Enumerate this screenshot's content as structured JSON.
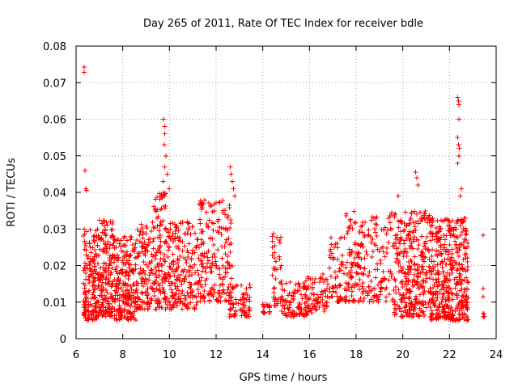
{
  "chart_data": {
    "type": "scatter",
    "title": "Day 265 of 2011, Rate Of TEC Index for receiver bdle",
    "xlabel": "GPS time / hours",
    "ylabel": "ROTI / TECUs",
    "xlim": [
      6,
      24
    ],
    "ylim": [
      0,
      0.08
    ],
    "xticks": [
      "6",
      "8",
      "10",
      "12",
      "14",
      "16",
      "18",
      "20",
      "22",
      "24"
    ],
    "yticks": [
      "0",
      "0.01",
      "0.02",
      "0.03",
      "0.04",
      "0.05",
      "0.06",
      "0.07",
      "0.08"
    ],
    "grid": true,
    "marker": "+",
    "color": "#ff0000",
    "clusters": [
      {
        "x_start": 6.3,
        "x_end": 7.0,
        "y_min": 0.005,
        "y_max": 0.03,
        "count": 180
      },
      {
        "x_start": 7.0,
        "x_end": 7.6,
        "y_min": 0.006,
        "y_max": 0.033,
        "count": 160
      },
      {
        "x_start": 7.6,
        "x_end": 8.6,
        "y_min": 0.005,
        "y_max": 0.028,
        "count": 220
      },
      {
        "x_start": 8.6,
        "x_end": 9.3,
        "y_min": 0.008,
        "y_max": 0.032,
        "count": 120
      },
      {
        "x_start": 9.3,
        "x_end": 10.0,
        "y_min": 0.008,
        "y_max": 0.041,
        "count": 140
      },
      {
        "x_start": 10.0,
        "x_end": 11.2,
        "y_min": 0.008,
        "y_max": 0.032,
        "count": 180
      },
      {
        "x_start": 11.2,
        "x_end": 12.7,
        "y_min": 0.01,
        "y_max": 0.038,
        "count": 200
      },
      {
        "x_start": 12.5,
        "x_end": 13.5,
        "y_min": 0.006,
        "y_max": 0.015,
        "count": 70
      },
      {
        "x_start": 14.0,
        "x_end": 14.3,
        "y_min": 0.007,
        "y_max": 0.01,
        "count": 20
      },
      {
        "x_start": 14.4,
        "x_end": 14.8,
        "y_min": 0.009,
        "y_max": 0.029,
        "count": 40
      },
      {
        "x_start": 14.8,
        "x_end": 15.9,
        "y_min": 0.006,
        "y_max": 0.016,
        "count": 100
      },
      {
        "x_start": 15.9,
        "x_end": 16.8,
        "y_min": 0.007,
        "y_max": 0.018,
        "count": 70
      },
      {
        "x_start": 16.8,
        "x_end": 17.5,
        "y_min": 0.01,
        "y_max": 0.028,
        "count": 60
      },
      {
        "x_start": 17.5,
        "x_end": 19.6,
        "y_min": 0.01,
        "y_max": 0.035,
        "count": 220
      },
      {
        "x_start": 19.6,
        "x_end": 21.2,
        "y_min": 0.006,
        "y_max": 0.035,
        "count": 320
      },
      {
        "x_start": 21.2,
        "x_end": 22.8,
        "y_min": 0.005,
        "y_max": 0.033,
        "count": 420
      },
      {
        "x_start": 23.4,
        "x_end": 23.5,
        "y_min": 0.006,
        "y_max": 0.014,
        "count": 4
      }
    ],
    "notable_points": [
      {
        "x": 6.35,
        "y": 0.0742
      },
      {
        "x": 6.35,
        "y": 0.0728
      },
      {
        "x": 6.38,
        "y": 0.046
      },
      {
        "x": 6.42,
        "y": 0.041
      },
      {
        "x": 6.45,
        "y": 0.0405
      },
      {
        "x": 9.75,
        "y": 0.06
      },
      {
        "x": 9.8,
        "y": 0.058
      },
      {
        "x": 9.8,
        "y": 0.056
      },
      {
        "x": 9.78,
        "y": 0.053
      },
      {
        "x": 9.85,
        "y": 0.05
      },
      {
        "x": 9.8,
        "y": 0.047
      },
      {
        "x": 9.9,
        "y": 0.045
      },
      {
        "x": 9.72,
        "y": 0.043
      },
      {
        "x": 12.6,
        "y": 0.047
      },
      {
        "x": 12.65,
        "y": 0.045
      },
      {
        "x": 12.7,
        "y": 0.043
      },
      {
        "x": 12.75,
        "y": 0.041
      },
      {
        "x": 12.8,
        "y": 0.039
      },
      {
        "x": 20.55,
        "y": 0.0455
      },
      {
        "x": 20.6,
        "y": 0.044
      },
      {
        "x": 20.65,
        "y": 0.042
      },
      {
        "x": 19.8,
        "y": 0.039
      },
      {
        "x": 22.35,
        "y": 0.066
      },
      {
        "x": 22.38,
        "y": 0.065
      },
      {
        "x": 22.4,
        "y": 0.064
      },
      {
        "x": 22.4,
        "y": 0.06
      },
      {
        "x": 22.35,
        "y": 0.055
      },
      {
        "x": 22.38,
        "y": 0.053
      },
      {
        "x": 22.42,
        "y": 0.052
      },
      {
        "x": 22.4,
        "y": 0.05
      },
      {
        "x": 22.35,
        "y": 0.048
      },
      {
        "x": 22.45,
        "y": 0.039
      },
      {
        "x": 22.5,
        "y": 0.041
      },
      {
        "x": 23.45,
        "y": 0.0283
      },
      {
        "x": 23.45,
        "y": 0.0137
      },
      {
        "x": 23.45,
        "y": 0.0115
      },
      {
        "x": 23.45,
        "y": 0.0068
      },
      {
        "x": 23.45,
        "y": 0.006
      }
    ]
  }
}
